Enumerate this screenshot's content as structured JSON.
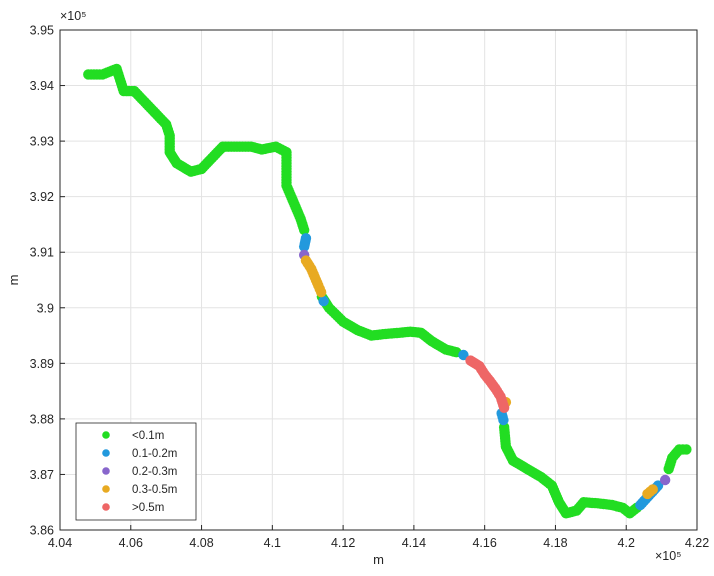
{
  "chart_data": {
    "type": "scatter",
    "title": "",
    "xlabel": "m",
    "ylabel": "m",
    "x_exponent_label": "×10⁵",
    "y_exponent_label": "×10⁵",
    "xlim": [
      4.04,
      4.22
    ],
    "ylim": [
      3.86,
      3.95
    ],
    "x_ticks": [
      "4.04",
      "4.06",
      "4.08",
      "4.1",
      "4.12",
      "4.14",
      "4.16",
      "4.18",
      "4.2",
      "4.22"
    ],
    "y_ticks": [
      "3.86",
      "3.87",
      "3.88",
      "3.89",
      "3.9",
      "3.91",
      "3.92",
      "3.93",
      "3.94",
      "3.95"
    ],
    "grid": true,
    "legend_position": "bottom-left",
    "series": [
      {
        "name": "<0.1m",
        "color": "#22dd22",
        "points": [
          [
            4.048,
            3.942
          ],
          [
            4.052,
            3.942
          ],
          [
            4.056,
            3.943
          ],
          [
            4.057,
            3.941
          ],
          [
            4.058,
            3.939
          ],
          [
            4.061,
            3.939
          ],
          [
            4.064,
            3.937
          ],
          [
            4.067,
            3.935
          ],
          [
            4.07,
            3.933
          ],
          [
            4.071,
            3.931
          ],
          [
            4.071,
            3.928
          ],
          [
            4.073,
            3.926
          ],
          [
            4.077,
            3.9245
          ],
          [
            4.08,
            3.925
          ],
          [
            4.083,
            3.927
          ],
          [
            4.086,
            3.929
          ],
          [
            4.09,
            3.929
          ],
          [
            4.094,
            3.929
          ],
          [
            4.097,
            3.9285
          ],
          [
            4.101,
            3.929
          ],
          [
            4.104,
            3.928
          ],
          [
            4.104,
            3.925
          ],
          [
            4.104,
            3.922
          ],
          [
            4.106,
            3.919
          ],
          [
            4.108,
            3.916
          ],
          [
            4.109,
            3.914
          ],
          [
            4.114,
            3.902
          ],
          [
            4.116,
            3.9
          ],
          [
            4.12,
            3.8975
          ],
          [
            4.124,
            3.896
          ],
          [
            4.128,
            3.895
          ],
          [
            4.132,
            3.8953
          ],
          [
            4.136,
            3.8955
          ],
          [
            4.139,
            3.8957
          ],
          [
            4.142,
            3.8955
          ],
          [
            4.145,
            3.894
          ],
          [
            4.149,
            3.8925
          ],
          [
            4.152,
            3.892
          ],
          [
            4.1655,
            3.8785
          ],
          [
            4.166,
            3.875
          ],
          [
            4.168,
            3.8725
          ],
          [
            4.172,
            3.871
          ],
          [
            4.176,
            3.8695
          ],
          [
            4.179,
            3.868
          ],
          [
            4.181,
            3.865
          ],
          [
            4.183,
            3.863
          ],
          [
            4.186,
            3.8635
          ],
          [
            4.188,
            3.865
          ],
          [
            4.192,
            3.8648
          ],
          [
            4.196,
            3.8645
          ],
          [
            4.199,
            3.864
          ],
          [
            4.201,
            3.863
          ],
          [
            4.203,
            3.864
          ],
          [
            4.212,
            3.871
          ],
          [
            4.213,
            3.873
          ],
          [
            4.215,
            3.8745
          ],
          [
            4.217,
            3.8745
          ]
        ]
      },
      {
        "name": "0.1-0.2m",
        "color": "#2299dd",
        "points": [
          [
            4.1095,
            3.9125
          ],
          [
            4.109,
            3.911
          ],
          [
            4.1145,
            3.9012
          ],
          [
            4.154,
            3.8915
          ],
          [
            4.1653,
            3.8798
          ],
          [
            4.1648,
            3.881
          ],
          [
            4.204,
            3.8645
          ],
          [
            4.209,
            3.868
          ]
        ]
      },
      {
        "name": "0.2-0.3m",
        "color": "#8866cc",
        "points": [
          [
            4.109,
            3.9095
          ],
          [
            4.211,
            3.869
          ]
        ]
      },
      {
        "name": "0.3-0.5m",
        "color": "#e8aa22",
        "points": [
          [
            4.1095,
            3.9085
          ],
          [
            4.111,
            3.907
          ],
          [
            4.112,
            3.9055
          ],
          [
            4.113,
            3.904
          ],
          [
            4.1138,
            3.9028
          ],
          [
            4.166,
            3.883
          ],
          [
            4.206,
            3.8665
          ],
          [
            4.2075,
            3.8673
          ]
        ]
      },
      {
        "name": ">0.5m",
        "color": "#ee6666",
        "points": [
          [
            4.156,
            3.8905
          ],
          [
            4.1585,
            3.8895
          ],
          [
            4.16,
            3.888
          ],
          [
            4.1615,
            3.8868
          ],
          [
            4.163,
            3.8855
          ],
          [
            4.1645,
            3.884
          ],
          [
            4.1655,
            3.882
          ]
        ]
      }
    ]
  }
}
